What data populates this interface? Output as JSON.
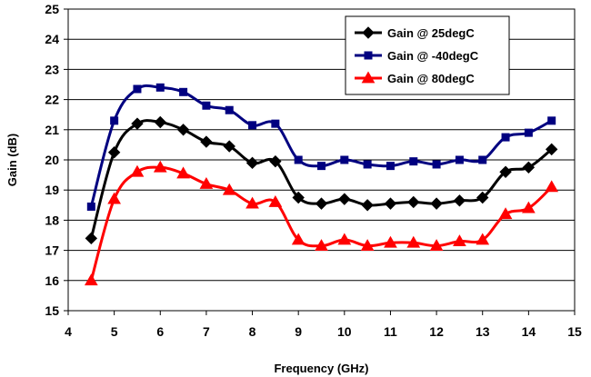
{
  "chart_data": {
    "type": "line",
    "title": "",
    "xlabel": "Frequency (GHz)",
    "ylabel": "Gain (dB)",
    "xlim": [
      4,
      15
    ],
    "ylim": [
      15,
      25
    ],
    "x_ticks": [
      "4",
      "5",
      "6",
      "7",
      "8",
      "9",
      "10",
      "11",
      "12",
      "13",
      "14",
      "15"
    ],
    "y_ticks": [
      "15",
      "16",
      "17",
      "18",
      "19",
      "20",
      "21",
      "22",
      "23",
      "24",
      "25"
    ],
    "grid": "horizontal",
    "legend_position": "top-right",
    "x": [
      4.5,
      5,
      5.5,
      6,
      6.5,
      7,
      7.5,
      8,
      8.5,
      9,
      9.5,
      10,
      10.5,
      11,
      11.5,
      12,
      12.5,
      13,
      13.5,
      14,
      14.5
    ],
    "series": [
      {
        "name": "Gain @ 25degC",
        "color": "#000000",
        "marker": "diamond",
        "values": [
          17.4,
          20.25,
          21.2,
          21.25,
          21.0,
          20.6,
          20.45,
          19.9,
          19.95,
          18.75,
          18.55,
          18.7,
          18.5,
          18.55,
          18.6,
          18.55,
          18.65,
          18.75,
          19.6,
          19.75,
          20.35
        ]
      },
      {
        "name": "Gain @ -40degC",
        "color": "#000080",
        "marker": "square",
        "values": [
          18.45,
          21.3,
          22.35,
          22.4,
          22.25,
          21.8,
          21.65,
          21.15,
          21.2,
          20.0,
          19.8,
          20.0,
          19.85,
          19.8,
          19.95,
          19.85,
          20.0,
          20.0,
          20.75,
          20.9,
          21.3
        ]
      },
      {
        "name": "Gain @ 80degC",
        "color": "#ff0000",
        "marker": "triangle",
        "values": [
          16.0,
          18.7,
          19.6,
          19.75,
          19.55,
          19.2,
          19.0,
          18.55,
          18.6,
          17.35,
          17.15,
          17.35,
          17.15,
          17.25,
          17.25,
          17.15,
          17.3,
          17.35,
          18.2,
          18.4,
          19.1
        ]
      }
    ]
  }
}
